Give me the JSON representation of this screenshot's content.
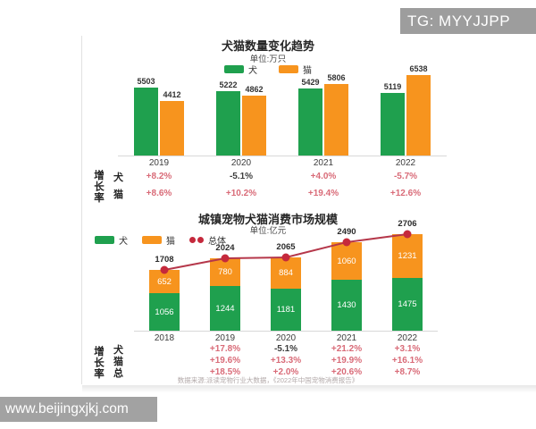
{
  "watermarks": {
    "top": "TG: MYYJJPP",
    "bottom": "www.beijingxjkj.com"
  },
  "colors": {
    "dog": "#1fa04e",
    "cat": "#f7941e",
    "line": "#b5374a",
    "dot": "#c5293c",
    "pink": "#d96b78",
    "dark": "#3d3d3d"
  },
  "chart_data": [
    {
      "type": "bar",
      "title": "犬猫数量变化趋势",
      "unit": "单位:万只",
      "categories": [
        "2019",
        "2020",
        "2021",
        "2022"
      ],
      "series": [
        {
          "name": "犬",
          "color_key": "dog",
          "values": [
            5503,
            5222,
            5429,
            5119
          ]
        },
        {
          "name": "猫",
          "color_key": "cat",
          "values": [
            4412,
            4862,
            5806,
            6538
          ]
        }
      ],
      "ylim": [
        0,
        6538
      ],
      "legend_position": "top-center",
      "growth": {
        "label": "增长率",
        "rows": [
          {
            "name": "犬",
            "values": [
              "+8.2%",
              "-5.1%",
              "+4.0%",
              "-5.7%"
            ],
            "dark_indexes": [
              1
            ]
          },
          {
            "name": "猫",
            "values": [
              "+8.6%",
              "+10.2%",
              "+19.4%",
              "+12.6%"
            ],
            "dark_indexes": []
          }
        ]
      }
    },
    {
      "type": "stacked-bar-line",
      "title": "城镇宠物犬猫消费市场规模",
      "unit": "单位:亿元",
      "categories": [
        "2018",
        "2019",
        "2020",
        "2021",
        "2022"
      ],
      "series": [
        {
          "name": "犬",
          "color_key": "dog",
          "values": [
            1056,
            1244,
            1181,
            1430,
            1475
          ]
        },
        {
          "name": "猫",
          "color_key": "cat",
          "values": [
            652,
            780,
            884,
            1060,
            1231
          ]
        }
      ],
      "line_series": {
        "name": "总体",
        "values": [
          1708,
          2024,
          2065,
          2490,
          2706
        ]
      },
      "ylim": [
        0,
        2706
      ],
      "legend_position": "left",
      "growth": {
        "label": "增长率",
        "rows": [
          {
            "name": "犬",
            "values": [
              "",
              "+17.8%",
              "-5.1%",
              "+21.2%",
              "+3.1%"
            ],
            "dark_indexes": [
              2
            ]
          },
          {
            "name": "猫",
            "values": [
              "",
              "+19.6%",
              "+13.3%",
              "+19.9%",
              "+16.1%"
            ],
            "dark_indexes": []
          },
          {
            "name": "总",
            "values": [
              "",
              "+18.5%",
              "+2.0%",
              "+20.6%",
              "+8.7%"
            ],
            "dark_indexes": []
          }
        ]
      },
      "source": "数据来源:派读宠物行业大数据，《2022年中国宠物消费报告》"
    }
  ]
}
